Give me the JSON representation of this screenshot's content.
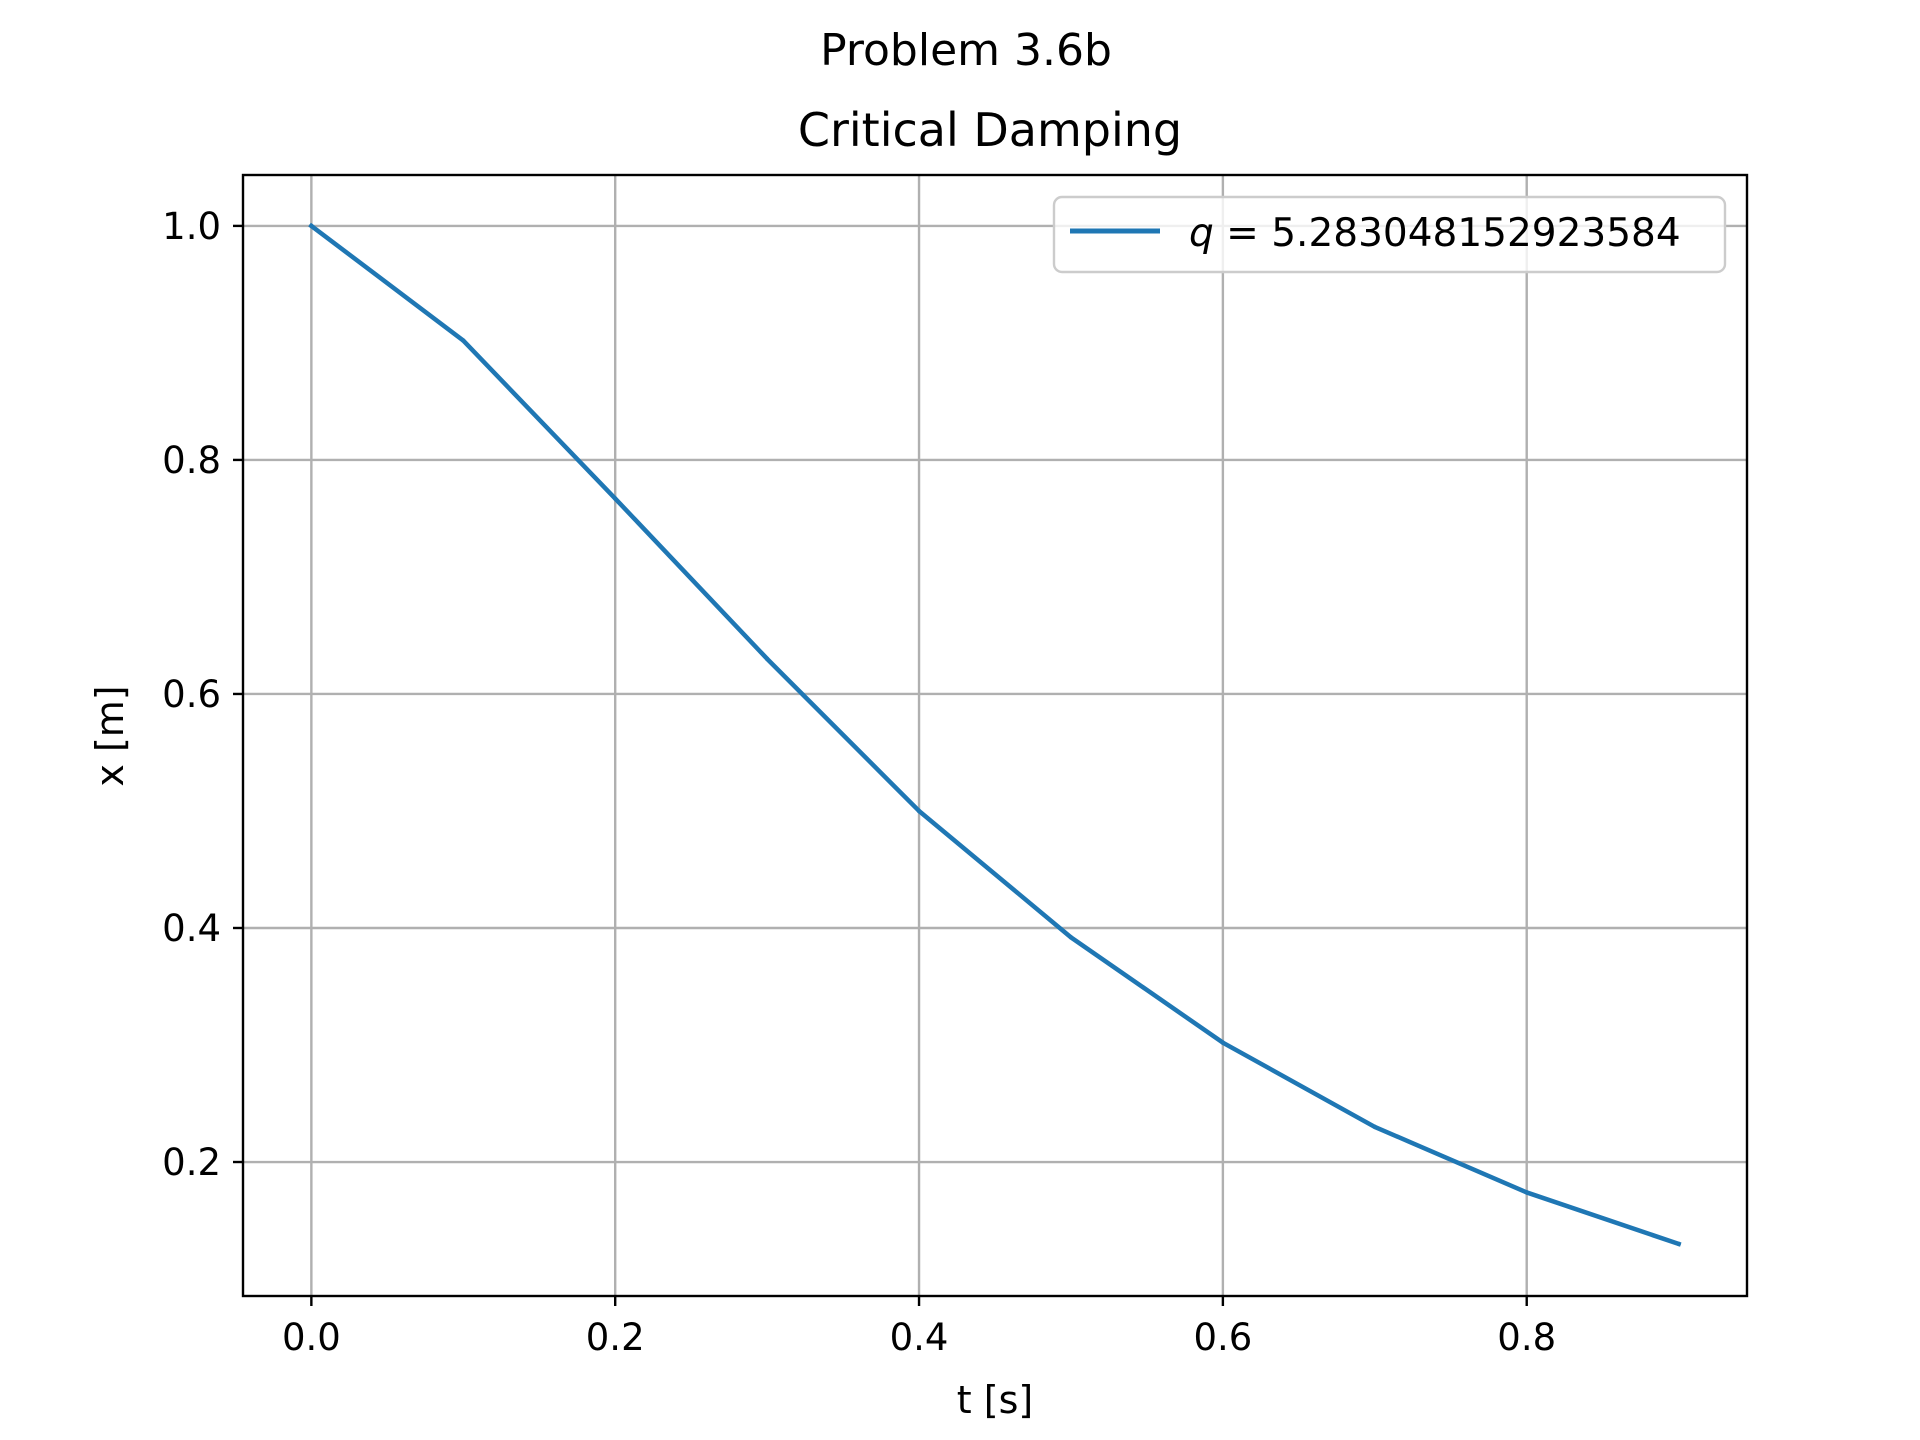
{
  "chart_data": {
    "type": "line",
    "suptitle": "Problem 3.6b",
    "title": "Critical Damping",
    "xlabel": "t [s]",
    "ylabel": "x [m]",
    "xlim": [
      -0.045,
      0.945
    ],
    "ylim": [
      0.0855,
      1.0435
    ],
    "xticks": [
      {
        "value": 0.0,
        "label": "0.0"
      },
      {
        "value": 0.2,
        "label": "0.2"
      },
      {
        "value": 0.4,
        "label": "0.4"
      },
      {
        "value": 0.6,
        "label": "0.6"
      },
      {
        "value": 0.8,
        "label": "0.8"
      }
    ],
    "yticks": [
      {
        "value": 0.2,
        "label": "0.2"
      },
      {
        "value": 0.4,
        "label": "0.4"
      },
      {
        "value": 0.6,
        "label": "0.6"
      },
      {
        "value": 0.8,
        "label": "0.8"
      },
      {
        "value": 1.0,
        "label": "1.0"
      }
    ],
    "grid": true,
    "legend_position": "upper right",
    "series": [
      {
        "name_symbol": "q",
        "name_rest": " = 5.283048152923584",
        "color": "#1f77b4",
        "x": [
          0.0,
          0.1,
          0.2,
          0.3,
          0.4,
          0.5,
          0.6,
          0.7,
          0.8,
          0.9
        ],
        "y": [
          1.0,
          0.902,
          0.767,
          0.63,
          0.5,
          0.392,
          0.302,
          0.23,
          0.174,
          0.13
        ]
      }
    ]
  }
}
